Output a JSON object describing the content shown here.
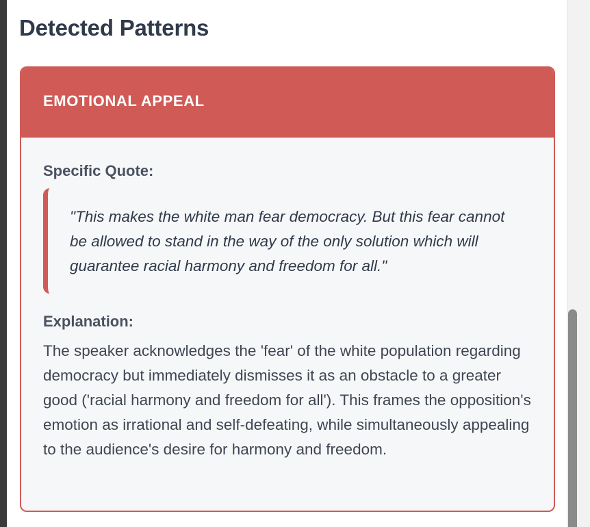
{
  "section": {
    "title": "Detected Patterns"
  },
  "pattern": {
    "name": "EMOTIONAL APPEAL",
    "quote_label": "Specific Quote:",
    "quote": "\"This makes the white man fear democracy. But this fear cannot be allowed to stand in the way of the only solution which will guarantee racial harmony and freedom for all.\"",
    "explanation_label": "Explanation:",
    "explanation": "The speaker acknowledges the 'fear' of the white population regarding democracy but immediately dismisses it as an obstacle to a greater good ('racial harmony and freedom for all'). This frames the opposition's emotion as irrational and self-defeating, while simultaneously appealing to the audience's desire for harmony and freedom."
  },
  "colors": {
    "accent": "#d05b56",
    "title_text": "#2f3a4a",
    "card_background": "#f6f7f9"
  }
}
